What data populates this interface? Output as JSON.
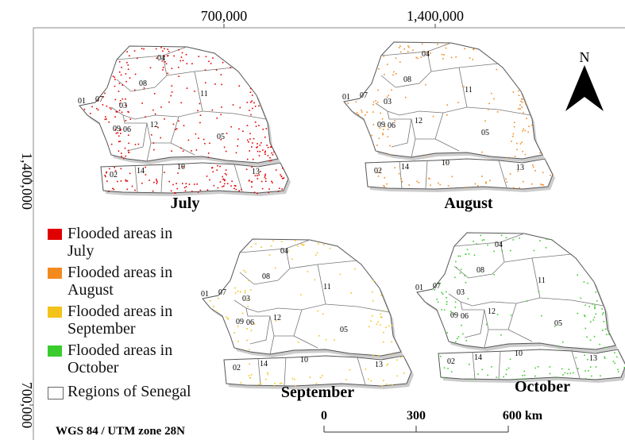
{
  "axes": {
    "top_ticks": [
      "700,000",
      "1,400,000"
    ],
    "left_ticks": [
      "1,400,000",
      "700,000"
    ]
  },
  "maps": [
    {
      "month": "July",
      "color": "#e10000"
    },
    {
      "month": "August",
      "color": "#f28a1e"
    },
    {
      "month": "September",
      "color": "#f3c21b"
    },
    {
      "month": "October",
      "color": "#39cc2c"
    }
  ],
  "region_labels": [
    "01",
    "02",
    "03",
    "04",
    "05",
    "06",
    "07",
    "08",
    "09",
    "10",
    "11",
    "12",
    "13",
    "14"
  ],
  "legend": {
    "items": [
      {
        "label": "Flooded areas in July",
        "color": "#e10000"
      },
      {
        "label": "Flooded areas in August",
        "color": "#f28a1e"
      },
      {
        "label": "Flooded areas in September",
        "color": "#f3c21b"
      },
      {
        "label": "Flooded areas in October",
        "color": "#39cc2c"
      },
      {
        "label": "Regions of Senegal",
        "color": "#ffffff"
      }
    ]
  },
  "north": "N",
  "crs": "WGS 84 / UTM zone 28N",
  "scale": {
    "ticks": [
      "0",
      "300",
      "600 km"
    ]
  }
}
